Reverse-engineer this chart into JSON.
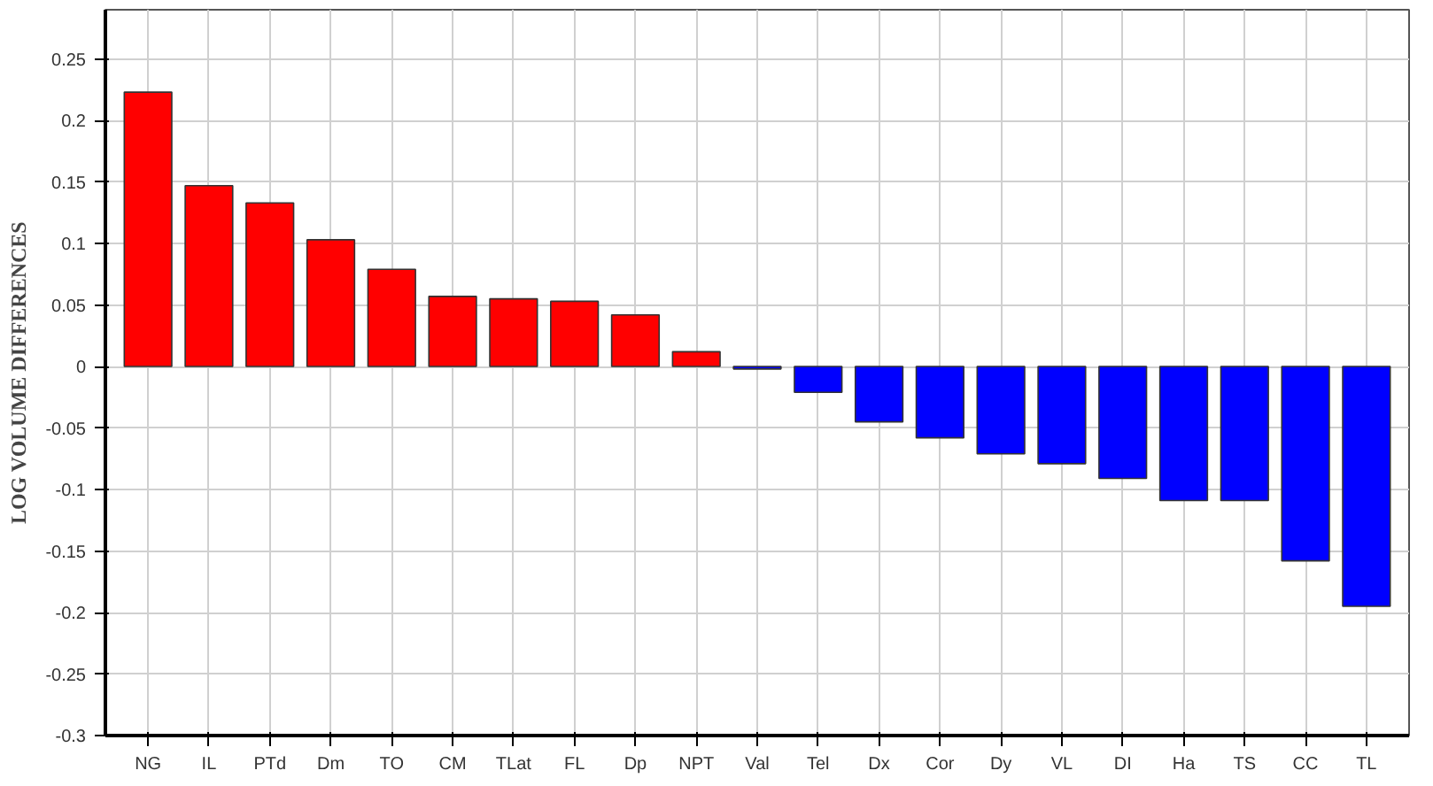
{
  "chart_data": {
    "type": "bar",
    "ylabel": "LOG VOLUME DIFFERENCES",
    "categories": [
      "NG",
      "IL",
      "PTd",
      "Dm",
      "TO",
      "CM",
      "TLat",
      "FL",
      "Dp",
      "NPT",
      "Val",
      "Tel",
      "Dx",
      "Cor",
      "Dy",
      "VL",
      "DI",
      "Ha",
      "TS",
      "CC",
      "TL"
    ],
    "values": [
      0.223,
      0.147,
      0.133,
      0.103,
      0.079,
      0.057,
      0.055,
      0.053,
      0.042,
      0.012,
      -0.002,
      -0.021,
      -0.045,
      -0.058,
      -0.071,
      -0.079,
      -0.091,
      -0.109,
      -0.109,
      -0.158,
      -0.195
    ],
    "colors": [
      "#ff0000",
      "#ff0000",
      "#ff0000",
      "#ff0000",
      "#ff0000",
      "#ff0000",
      "#ff0000",
      "#ff0000",
      "#ff0000",
      "#ff0000",
      "#0000ff",
      "#0000ff",
      "#0000ff",
      "#0000ff",
      "#0000ff",
      "#0000ff",
      "#0000ff",
      "#0000ff",
      "#0000ff",
      "#0000ff",
      "#0000ff"
    ],
    "ylim": [
      -0.3,
      0.29
    ],
    "yticks": [
      -0.3,
      -0.25,
      -0.2,
      -0.15,
      -0.1,
      -0.05,
      0,
      0.05,
      0.1,
      0.15,
      0.2,
      0.25
    ],
    "grid": true
  }
}
